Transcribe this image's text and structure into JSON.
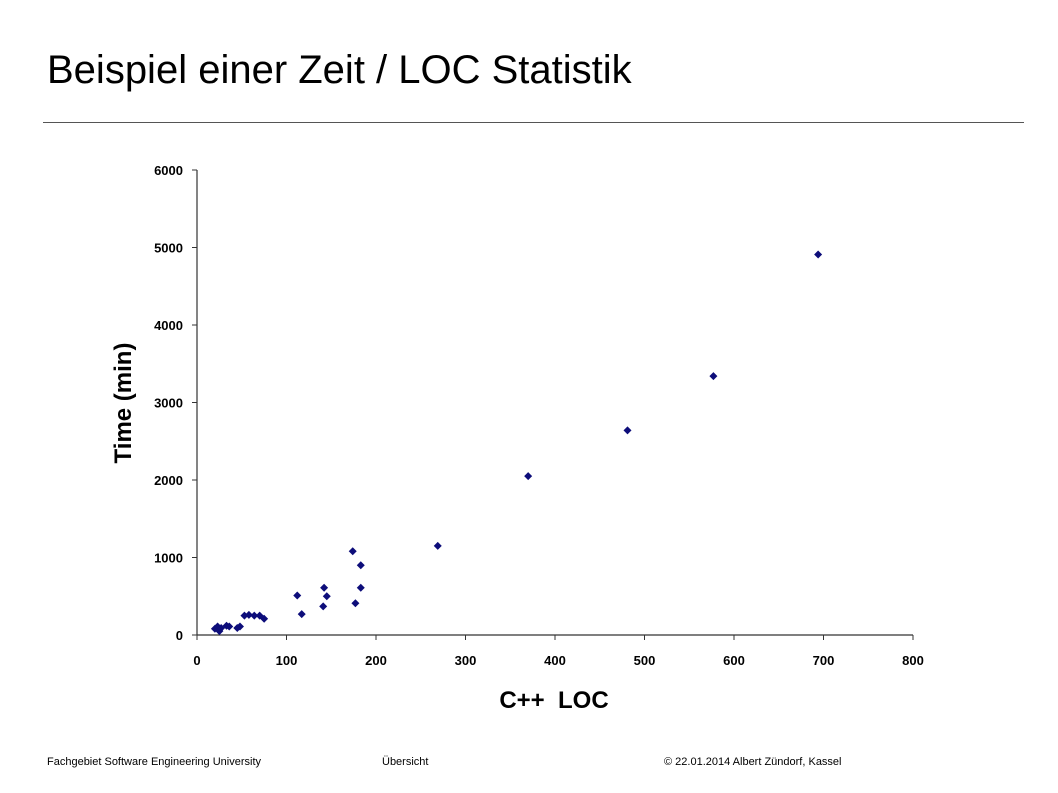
{
  "slide": {
    "title": "Beispiel einer Zeit / LOC Statistik"
  },
  "footer": {
    "left": "Fachgebiet Software Engineering University",
    "center": "Übersicht",
    "right": "© 22.01.2014 Albert Zündorf, Kassel"
  },
  "colors": {
    "marker": "#0d0d7a",
    "axis": "#333333",
    "rule": "#555555"
  },
  "chart_data": {
    "type": "scatter",
    "title": "",
    "xlabel": "C++  LOC",
    "ylabel": "Time (min)",
    "xlim": [
      0,
      800
    ],
    "ylim": [
      0,
      6000
    ],
    "x_ticks": [
      "0",
      "100",
      "200",
      "300",
      "400",
      "500",
      "600",
      "700",
      "800"
    ],
    "y_ticks": [
      "0",
      "1000",
      "2000",
      "3000",
      "4000",
      "5000",
      "6000"
    ],
    "grid": false,
    "legend": "none",
    "marker": "diamond",
    "series": [
      {
        "points": [
          [
            20,
            80
          ],
          [
            23,
            110
          ],
          [
            25,
            50
          ],
          [
            27,
            90
          ],
          [
            33,
            120
          ],
          [
            36,
            110
          ],
          [
            45,
            90
          ],
          [
            48,
            110
          ],
          [
            53,
            250
          ],
          [
            58,
            260
          ],
          [
            64,
            250
          ],
          [
            70,
            250
          ],
          [
            75,
            210
          ],
          [
            112,
            510
          ],
          [
            117,
            270
          ],
          [
            141,
            370
          ],
          [
            142,
            610
          ],
          [
            145,
            500
          ],
          [
            174,
            1080
          ],
          [
            177,
            410
          ],
          [
            183,
            610
          ],
          [
            183,
            900
          ],
          [
            269,
            1150
          ],
          [
            370,
            2050
          ],
          [
            481,
            2640
          ],
          [
            577,
            3340
          ],
          [
            694,
            4910
          ]
        ]
      }
    ]
  }
}
